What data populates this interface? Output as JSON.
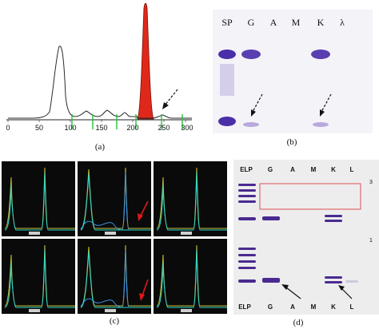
{
  "panel_a": {
    "caption": "(a)",
    "axis_ticks": [
      "0",
      "50",
      "100",
      "150",
      "200",
      "250",
      "300"
    ],
    "colors": {
      "trace": "#2a2a2a",
      "peak": "#e0281a",
      "marker": "#22c23a"
    }
  },
  "panel_b": {
    "caption": "(b)",
    "lane_labels": [
      "SP",
      "G",
      "A",
      "M",
      "K",
      "λ"
    ],
    "colors": {
      "band": "#5a3fb0",
      "background": "#f4f3f8"
    }
  },
  "panel_c": {
    "caption": "(c)",
    "colors": {
      "background": "#0a0a0a",
      "trace_yellow": "#c8c23a",
      "trace_teal": "#2fd6c8",
      "trace_blue": "#3a8fe0",
      "arrow": "#e01818"
    }
  },
  "panel_d": {
    "caption": "(d)",
    "lane_labels_top": [
      "ELP",
      "G",
      "A",
      "M",
      "K",
      "L"
    ],
    "lane_labels_bottom": [
      "ELP",
      "G",
      "A",
      "M",
      "K",
      "L"
    ],
    "side_marks": [
      "3",
      "1"
    ],
    "colors": {
      "band": "#4a2a90",
      "background": "#ededee",
      "box": "#e05050"
    }
  }
}
